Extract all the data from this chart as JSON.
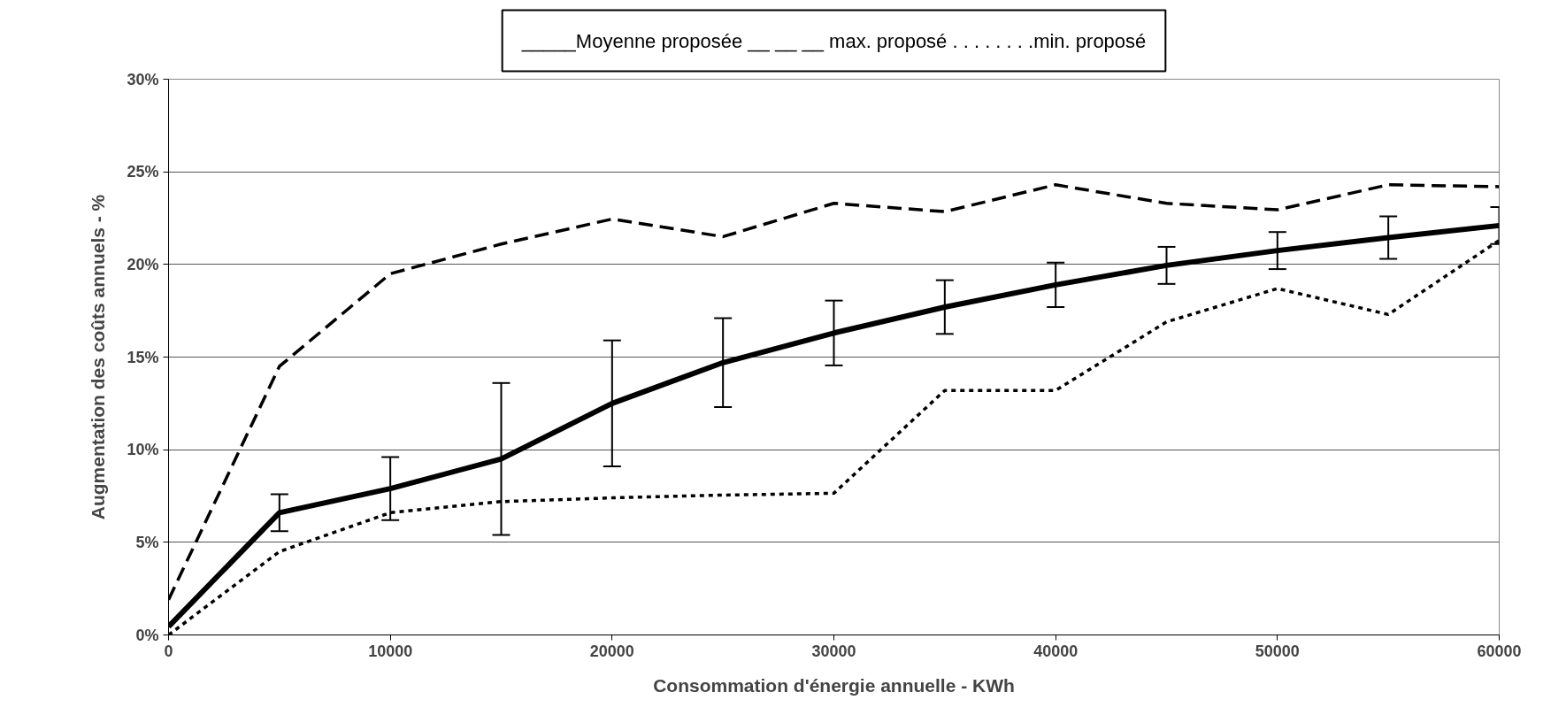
{
  "chart_data": {
    "type": "line",
    "xlabel": "Consommation d'énergie annuelle - KWh",
    "ylabel": "Augmentation des coûts annuels - %",
    "annotations": [
      "_____Moyenne proposée __ __ __ max. proposé . . . . . . . .min. proposé"
    ],
    "x": [
      0,
      5000,
      10000,
      15000,
      20000,
      25000,
      30000,
      35000,
      40000,
      45000,
      50000,
      55000,
      60000
    ],
    "series": [
      {
        "color": "#000000",
        "line_style": "solid",
        "values": [
          0.45,
          6.6,
          7.9,
          9.5,
          12.5,
          14.7,
          16.3,
          17.7,
          18.9,
          19.95,
          20.75,
          21.45,
          22.1
        ],
        "errors": [
          null,
          1.0,
          1.7,
          4.1,
          3.4,
          2.4,
          1.75,
          1.45,
          1.2,
          1.0,
          1.0,
          1.15,
          1.0
        ]
      },
      {
        "color": "#000000",
        "line_style": "dashed",
        "values": [
          1.9,
          14.5,
          19.5,
          21.1,
          22.45,
          21.5,
          23.3,
          22.85,
          24.3,
          23.3,
          22.95,
          24.3,
          24.2
        ]
      },
      {
        "color": "#000000",
        "line_style": "dotted",
        "values": [
          0,
          4.5,
          6.6,
          7.2,
          7.4,
          7.55,
          7.65,
          13.2,
          13.2,
          16.9,
          18.7,
          17.3,
          21.3
        ]
      }
    ],
    "xlim": [
      0,
      60000
    ],
    "xticks": [
      0,
      10000,
      20000,
      30000,
      40000,
      50000,
      60000
    ],
    "ylim": [
      0,
      30
    ],
    "yticks": [
      {
        "value": 0,
        "label": "0%"
      },
      {
        "value": 5,
        "label": "5%"
      },
      {
        "value": 10,
        "label": "10%"
      },
      {
        "value": 15,
        "label": "15%"
      },
      {
        "value": 20,
        "label": "20%"
      },
      {
        "value": 25,
        "label": "25%"
      },
      {
        "value": 30,
        "label": "30%"
      }
    ],
    "grid": "y",
    "marker": "none"
  }
}
